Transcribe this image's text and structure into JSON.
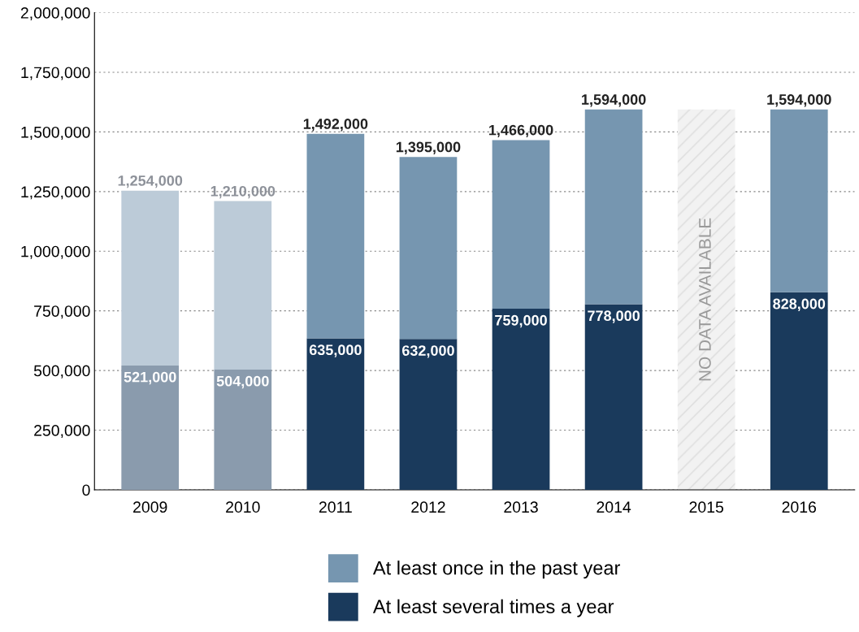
{
  "chart_data": {
    "type": "bar",
    "stacked": true,
    "categories": [
      "2009",
      "2010",
      "2011",
      "2012",
      "2013",
      "2014",
      "2015",
      "2016"
    ],
    "series": [
      {
        "name": "At least several times a year",
        "color": "#1a3a5c",
        "colors": [
          "#8a9bad",
          "#8a9bad",
          "#1a3a5c",
          "#1a3a5c",
          "#1a3a5c",
          "#1a3a5c",
          "#1a3a5c",
          "#1a3a5c"
        ],
        "values": [
          521000,
          504000,
          635000,
          632000,
          759000,
          778000,
          null,
          828000
        ],
        "value_labels": [
          "521,000",
          "504,000",
          "635,000",
          "632,000",
          "759,000",
          "778,000",
          null,
          "828,000"
        ]
      },
      {
        "name": "At least once in the past year",
        "color": "#7696b0",
        "colors": [
          "#bccbd8",
          "#bccbd8",
          "#7696b0",
          "#7696b0",
          "#7696b0",
          "#7696b0",
          "#7696b0",
          "#7696b0"
        ],
        "values": [
          733000,
          706000,
          857000,
          763000,
          707000,
          816000,
          null,
          766000
        ]
      }
    ],
    "totals": [
      "1,254,000",
      "1,210,000",
      "1,492,000",
      "1,395,000",
      "1,466,000",
      "1,594,000",
      null,
      "1,594,000"
    ],
    "bands": [
      {
        "axis": "x",
        "from": "2015",
        "to": "2015",
        "label": "NO DATA AVAILABLE",
        "color": "#f2f2f2"
      }
    ],
    "ylim": [
      0,
      2000000
    ],
    "yticks": [
      0,
      {
        "value": 250000,
        "label": "250,000"
      },
      {
        "value": 500000,
        "label": "500,000"
      },
      {
        "value": 750000,
        "label": "750,000"
      },
      {
        "value": 1000000,
        "label": "1,000,000"
      },
      {
        "value": 1250000,
        "label": "1,250,000"
      },
      {
        "value": 1500000,
        "label": "1,500,000"
      },
      {
        "value": 1750000,
        "label": "1,750,000"
      },
      {
        "value": 2000000,
        "label": "2,000,000"
      }
    ],
    "grid": "y",
    "legend": "bottom"
  }
}
